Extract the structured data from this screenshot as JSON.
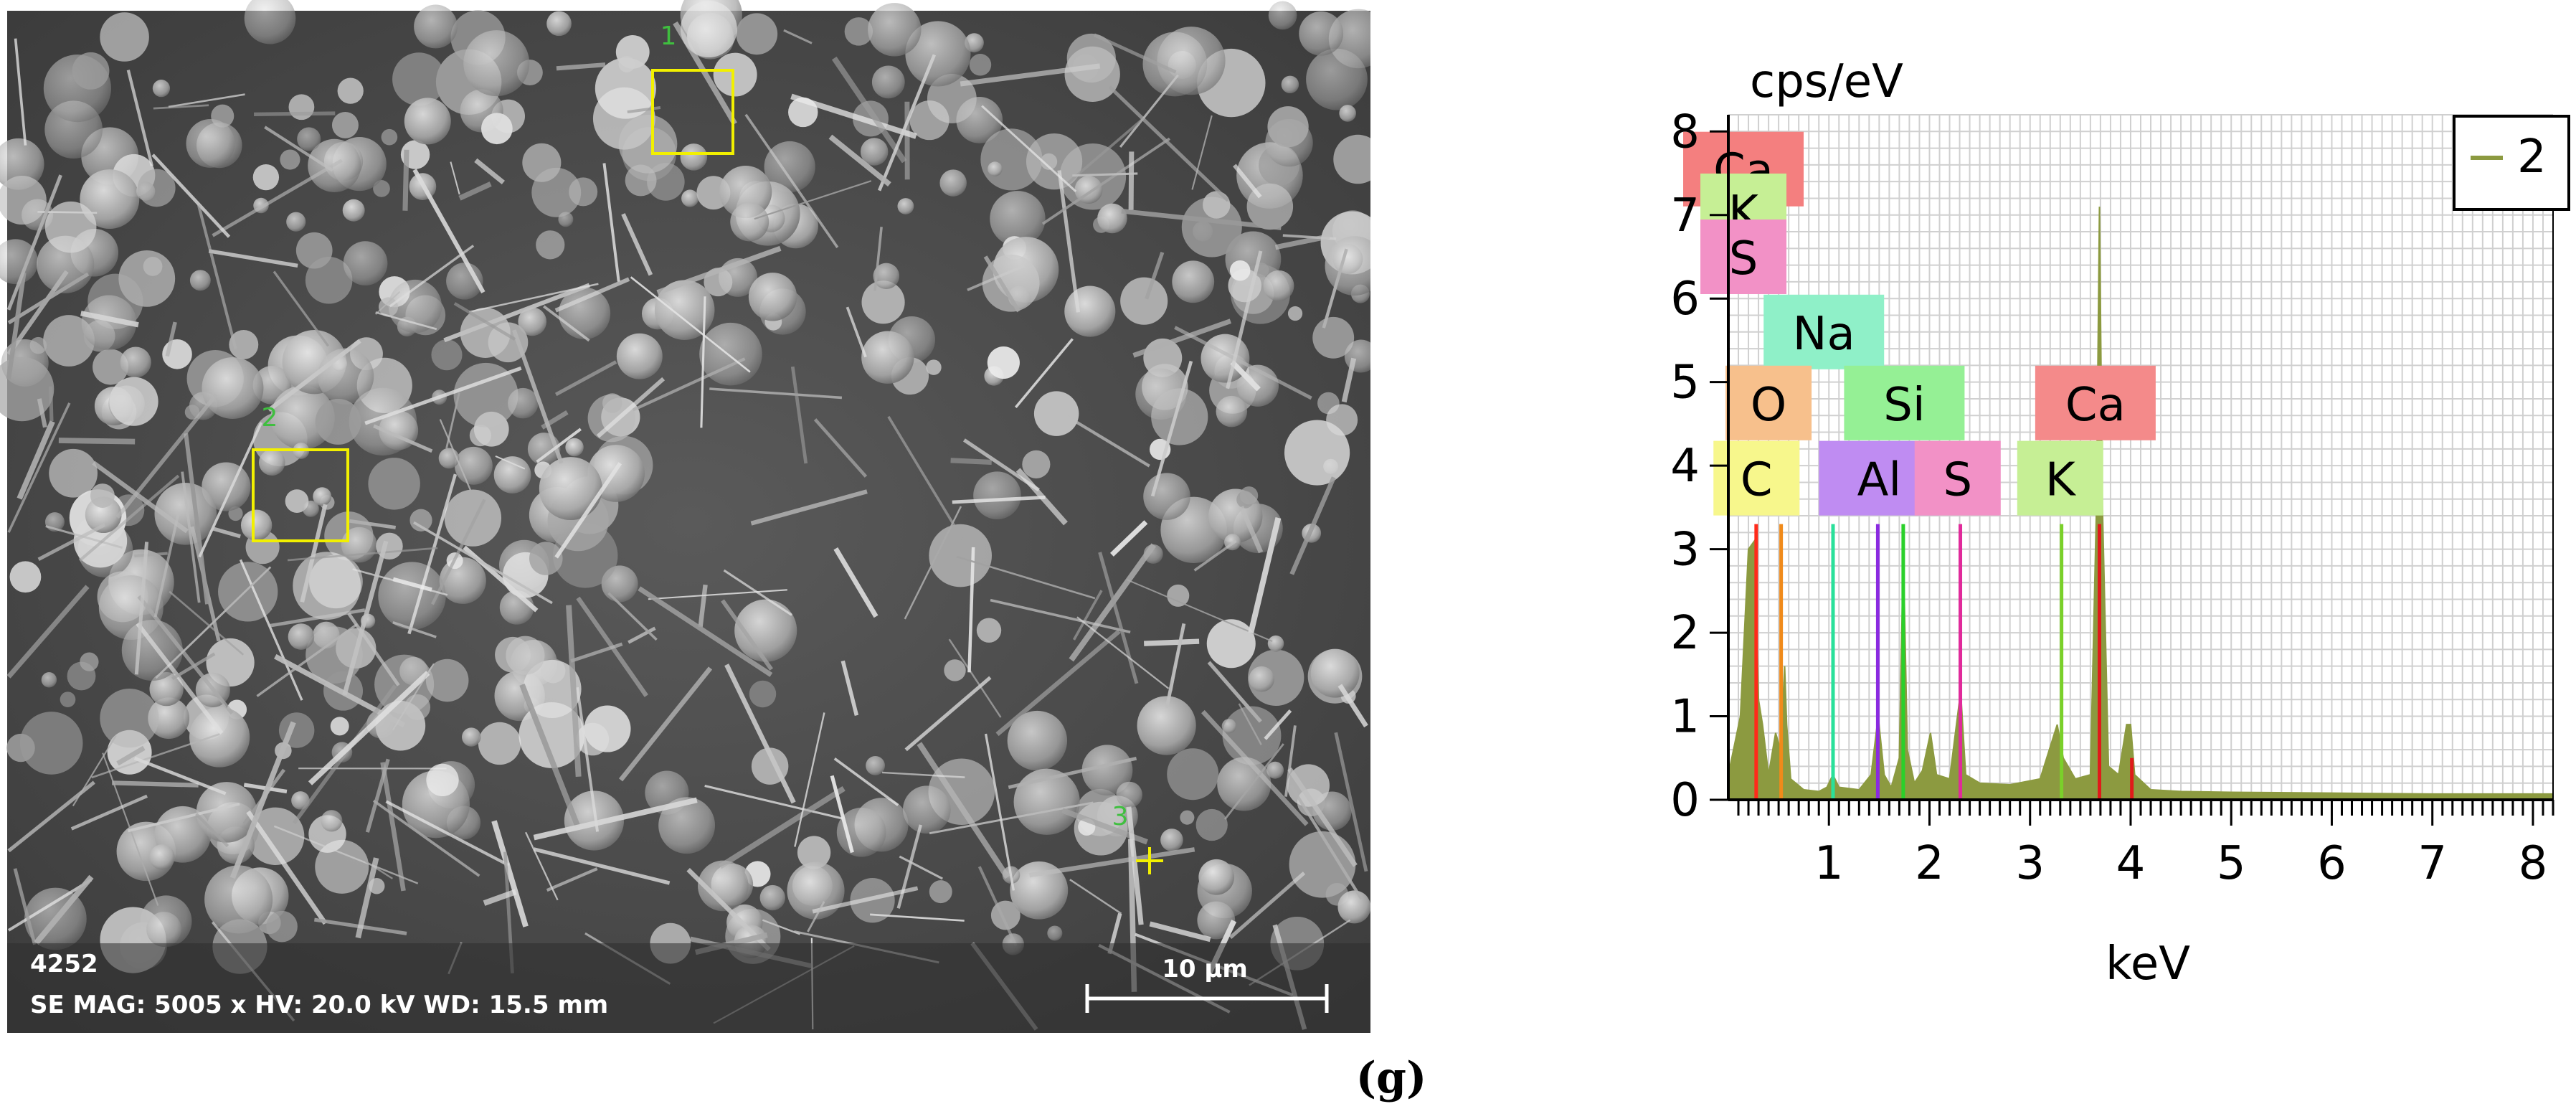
{
  "sem": {
    "sample_id": "4252",
    "info_line": "SE MAG: 5005 x  HV: 20.0 kV  WD: 15.5 mm",
    "scale_bar_label": "10 µm",
    "markers": [
      {
        "label": "1",
        "kind": "box"
      },
      {
        "label": "2",
        "kind": "box"
      },
      {
        "label": "3",
        "kind": "cross"
      }
    ]
  },
  "panel_letter": "(g)",
  "colors": {
    "spectrum_fill": "#8c9a40",
    "marker_yellow": "#f2f000",
    "marker_green": "#3fbf3f"
  },
  "chart_data": {
    "type": "area",
    "xlabel": "keV",
    "ylabel": "cps/eV",
    "xlim": [
      0,
      8.2
    ],
    "ylim": [
      0,
      8.2
    ],
    "xticks": [
      1,
      2,
      3,
      4,
      5,
      6,
      7,
      8
    ],
    "yticks": [
      0,
      1,
      2,
      3,
      4,
      5,
      6,
      7,
      8
    ],
    "grid": true,
    "legend": {
      "position": "top-right",
      "entries": [
        "2"
      ]
    },
    "series": [
      {
        "name": "2",
        "color": "#8c9a40",
        "points": [
          [
            0.0,
            0.3
          ],
          [
            0.12,
            1.0
          ],
          [
            0.2,
            3.0
          ],
          [
            0.26,
            3.1
          ],
          [
            0.3,
            1.2
          ],
          [
            0.34,
            0.9
          ],
          [
            0.4,
            0.3
          ],
          [
            0.47,
            0.8
          ],
          [
            0.52,
            0.6
          ],
          [
            0.56,
            1.6
          ],
          [
            0.58,
            0.9
          ],
          [
            0.62,
            0.25
          ],
          [
            0.75,
            0.12
          ],
          [
            0.9,
            0.1
          ],
          [
            0.98,
            0.15
          ],
          [
            1.04,
            0.3
          ],
          [
            1.1,
            0.15
          ],
          [
            1.3,
            0.12
          ],
          [
            1.42,
            0.3
          ],
          [
            1.49,
            1.0
          ],
          [
            1.55,
            0.3
          ],
          [
            1.62,
            0.15
          ],
          [
            1.7,
            0.5
          ],
          [
            1.74,
            3.0
          ],
          [
            1.78,
            0.6
          ],
          [
            1.85,
            0.2
          ],
          [
            1.93,
            0.35
          ],
          [
            2.01,
            0.8
          ],
          [
            2.07,
            0.3
          ],
          [
            2.2,
            0.25
          ],
          [
            2.31,
            1.3
          ],
          [
            2.36,
            0.3
          ],
          [
            2.5,
            0.2
          ],
          [
            2.8,
            0.18
          ],
          [
            3.1,
            0.25
          ],
          [
            3.27,
            0.9
          ],
          [
            3.33,
            0.5
          ],
          [
            3.45,
            0.25
          ],
          [
            3.6,
            0.3
          ],
          [
            3.66,
            3.5
          ],
          [
            3.69,
            7.1
          ],
          [
            3.72,
            3.5
          ],
          [
            3.78,
            0.4
          ],
          [
            3.88,
            0.3
          ],
          [
            3.96,
            0.9
          ],
          [
            4.0,
            0.9
          ],
          [
            4.04,
            0.3
          ],
          [
            4.2,
            0.12
          ],
          [
            4.5,
            0.1
          ],
          [
            5.0,
            0.09
          ],
          [
            6.0,
            0.08
          ],
          [
            7.0,
            0.07
          ],
          [
            8.2,
            0.07
          ]
        ]
      }
    ],
    "element_markers": [
      {
        "element": "C",
        "energy": 0.277,
        "height": 3.3,
        "color": "#ff2a1a"
      },
      {
        "element": "O",
        "energy": 0.525,
        "height": 3.3,
        "color": "#f08a1a"
      },
      {
        "element": "Na",
        "energy": 1.041,
        "height": 3.3,
        "color": "#2ae09a"
      },
      {
        "element": "Al",
        "energy": 1.486,
        "height": 3.3,
        "color": "#8a2ae0"
      },
      {
        "element": "Si",
        "energy": 1.739,
        "height": 3.3,
        "color": "#2ad02a"
      },
      {
        "element": "S",
        "energy": 2.307,
        "height": 3.3,
        "color": "#e02a9a"
      },
      {
        "element": "K",
        "energy": 3.313,
        "height": 3.3,
        "color": "#7ad02a"
      },
      {
        "element": "Ca",
        "energy": 3.69,
        "height": 3.3,
        "color": "#e01a1a"
      },
      {
        "element": "Ca",
        "energy": 4.012,
        "height": 0.5,
        "color": "#e01a1a"
      }
    ],
    "element_labels": [
      {
        "text": "Ca",
        "x": 0.15,
        "y": 7.55,
        "color": "#f47f7f"
      },
      {
        "text": "K",
        "x": 0.15,
        "y": 7.05,
        "color": "#c6ef95"
      },
      {
        "text": "S",
        "x": 0.15,
        "y": 6.5,
        "color": "#f291c6"
      },
      {
        "text": "Na",
        "x": 0.95,
        "y": 5.6,
        "color": "#8ff0c8"
      },
      {
        "text": "O",
        "x": 0.4,
        "y": 4.75,
        "color": "#f7c08c"
      },
      {
        "text": "Si",
        "x": 1.75,
        "y": 4.75,
        "color": "#95f095"
      },
      {
        "text": "Ca",
        "x": 3.65,
        "y": 4.75,
        "color": "#f48a8a"
      },
      {
        "text": "C",
        "x": 0.28,
        "y": 3.85,
        "color": "#f7f78c"
      },
      {
        "text": "Al",
        "x": 1.5,
        "y": 3.85,
        "color": "#bf8cf2"
      },
      {
        "text": "S",
        "x": 2.28,
        "y": 3.85,
        "color": "#f291c6"
      },
      {
        "text": "K",
        "x": 3.3,
        "y": 3.85,
        "color": "#c6ef95"
      }
    ]
  }
}
